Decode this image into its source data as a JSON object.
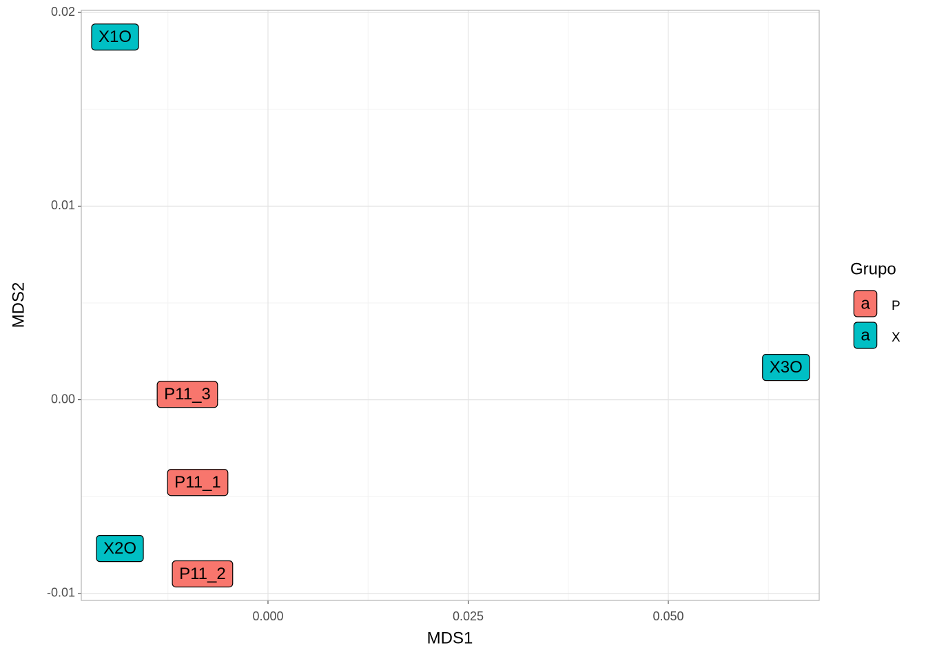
{
  "chart_data": {
    "type": "scatter",
    "x_label": "MDS1",
    "y_label": "MDS2",
    "xlim": [
      -0.02332,
      0.06885
    ],
    "ylim": [
      -0.01036,
      0.02011
    ],
    "xticks": [
      {
        "value": 0,
        "label": "0.000"
      },
      {
        "value": 0.025,
        "label": "0.025"
      },
      {
        "value": 0.05,
        "label": "0.050"
      }
    ],
    "yticks": [
      -0.01,
      {
        "value": 0,
        "label": "0.00"
      },
      0.01,
      0.02
    ],
    "grid": true,
    "legend_title": "Grupo",
    "legend_glyph": "a",
    "series": [
      {
        "name": "P",
        "color": "#F8766D",
        "labels": [
          "P11_3",
          "P11_1",
          "P11_2"
        ],
        "x": [
          -0.01007,
          -0.00878,
          -0.00818
        ],
        "values": [
          0.00028,
          -0.00427,
          -0.00899
        ]
      },
      {
        "name": "X",
        "color": "#00BFC4",
        "labels": [
          "X1O",
          "X3O",
          "X2O"
        ],
        "x": [
          -0.0191,
          0.0647,
          -0.0185
        ],
        "values": [
          0.01873,
          0.00167,
          -0.00768
        ]
      }
    ]
  }
}
